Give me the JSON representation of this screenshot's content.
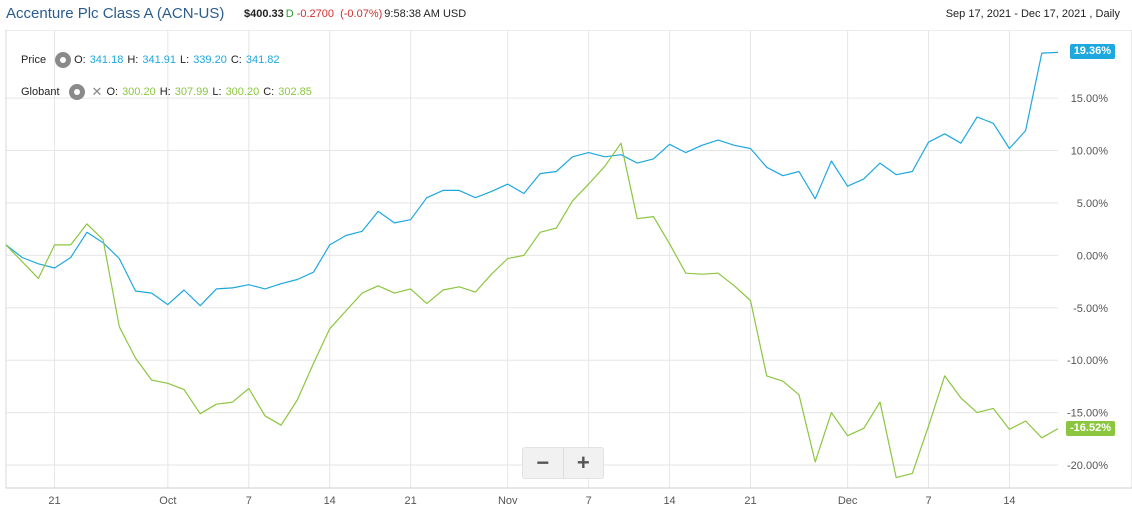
{
  "header": {
    "title": "Accenture Plc Class A (ACN-US)",
    "price": "$400.33",
    "delay": "D",
    "change": "-0.2700",
    "change_pct": "(-0.07%)",
    "time": "9:58:38 AM USD",
    "range": "Sep 17, 2021 - Dec 17, 2021 , Daily"
  },
  "legend": {
    "price": {
      "label": "Price",
      "o_label": "O:",
      "o": "341.18",
      "h_label": "H:",
      "h": "341.91",
      "l_label": "L:",
      "l": "339.20",
      "c_label": "C:",
      "c": "341.82"
    },
    "globant": {
      "label": "Globant",
      "o_label": "O:",
      "o": "300.20",
      "h_label": "H:",
      "h": "307.99",
      "l_label": "L:",
      "l": "300.20",
      "c_label": "C:",
      "c": "302.85"
    }
  },
  "controls": {
    "zoom_out": "−",
    "zoom_in": "+"
  },
  "colors": {
    "price": "#1ea8e0",
    "globant": "#8cc63f",
    "grid": "#e6e6e6",
    "axis_text": "#555555"
  },
  "icons": {
    "settings": "gear-icon",
    "remove": "close-icon"
  },
  "chart_data": {
    "type": "line",
    "ylim": [
      -22,
      21.5
    ],
    "yticks": [
      15,
      10,
      5,
      0,
      -5,
      -10,
      -15,
      -20
    ],
    "ytick_labels": [
      "15.00%",
      "10.00%",
      "5.00%",
      "0.00%",
      "-5.00%",
      "-10.00%",
      "-15.00%",
      "-20.00%"
    ],
    "x_tick_labels": [
      "21",
      "Oct",
      "7",
      "14",
      "21",
      "Nov",
      "7",
      "14",
      "21",
      "Dec",
      "7",
      "14"
    ],
    "x_tick_index": [
      3,
      10,
      15,
      20,
      25,
      31,
      36,
      41,
      46,
      52,
      57,
      62
    ],
    "end_labels": {
      "price": "19.36%",
      "globant": "-16.52%"
    },
    "series": [
      {
        "key": "price",
        "values": [
          1.0,
          -0.2,
          -0.8,
          -1.2,
          -0.2,
          2.2,
          1.2,
          -0.3,
          -3.4,
          -3.6,
          -4.7,
          -3.3,
          -4.8,
          -3.2,
          -3.1,
          -2.8,
          -3.2,
          -2.7,
          -2.3,
          -1.6,
          1.0,
          1.9,
          2.3,
          4.2,
          3.1,
          3.4,
          5.5,
          6.2,
          6.2,
          5.5,
          6.1,
          6.8,
          5.9,
          7.8,
          8.0,
          9.4,
          9.8,
          9.4,
          9.6,
          8.8,
          9.2,
          10.6,
          9.8,
          10.5,
          11.0,
          10.5,
          10.2,
          8.4,
          7.6,
          8.0,
          5.4,
          9.0,
          6.6,
          7.3,
          8.8,
          7.7,
          8.0,
          10.8,
          11.6,
          10.7,
          13.2,
          12.6,
          10.2,
          11.9,
          19.3,
          19.36
        ]
      },
      {
        "key": "globant",
        "values": [
          1.0,
          -0.6,
          -2.2,
          1.0,
          1.0,
          3.0,
          1.5,
          -6.8,
          -9.8,
          -11.9,
          -12.2,
          -12.8,
          -15.1,
          -14.2,
          -14.0,
          -12.7,
          -15.3,
          -16.2,
          -13.8,
          -10.3,
          -7.0,
          -5.3,
          -3.6,
          -2.9,
          -3.6,
          -3.2,
          -4.6,
          -3.3,
          -3.0,
          -3.5,
          -1.8,
          -0.3,
          0.0,
          2.2,
          2.6,
          5.2,
          6.8,
          8.5,
          10.7,
          3.5,
          3.7,
          1.1,
          -1.7,
          -1.8,
          -1.7,
          -2.9,
          -4.3,
          -11.5,
          -12.0,
          -13.3,
          -19.7,
          -15.0,
          -17.2,
          -16.5,
          -14.0,
          -21.2,
          -20.8,
          -16.3,
          -11.5,
          -13.6,
          -15.0,
          -14.6,
          -16.6,
          -15.8,
          -17.4,
          -16.52
        ]
      }
    ]
  }
}
